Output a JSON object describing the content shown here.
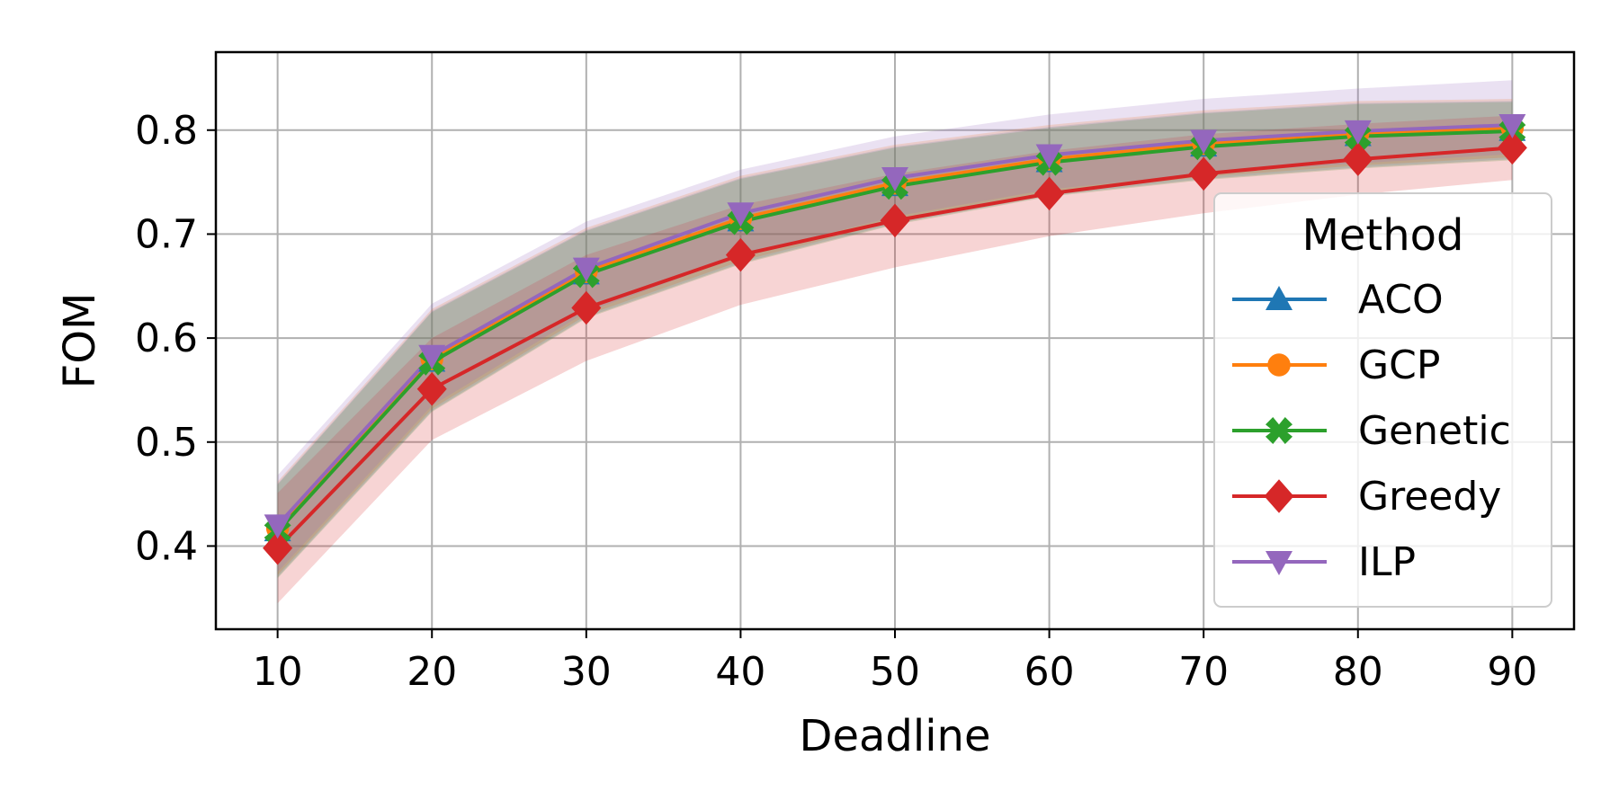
{
  "chart_data": {
    "type": "line",
    "xlabel": "Deadline",
    "ylabel": "FOM",
    "x": [
      10,
      20,
      30,
      40,
      50,
      60,
      70,
      80,
      90
    ],
    "xlim": [
      6,
      94
    ],
    "ylim": [
      0.32,
      0.875
    ],
    "xticks": [
      "10",
      "20",
      "30",
      "40",
      "50",
      "60",
      "70",
      "80",
      "90"
    ],
    "yticks": [
      "0.4",
      "0.5",
      "0.6",
      "0.7",
      "0.8"
    ],
    "ytick_values": [
      0.4,
      0.5,
      0.6,
      0.7,
      0.8
    ],
    "grid": true,
    "legend": {
      "title": "Method",
      "placement": "right"
    },
    "series": [
      {
        "name": "ACO",
        "marker": "triangle-up",
        "color": "#1f77b4",
        "values": [
          0.415,
          0.578,
          0.662,
          0.713,
          0.747,
          0.77,
          0.785,
          0.795,
          0.8
        ],
        "lower": [
          0.37,
          0.53,
          0.62,
          0.672,
          0.71,
          0.737,
          0.753,
          0.764,
          0.772
        ],
        "upper": [
          0.46,
          0.626,
          0.704,
          0.754,
          0.784,
          0.803,
          0.817,
          0.826,
          0.828
        ]
      },
      {
        "name": "GCP",
        "marker": "circle",
        "color": "#ff7f0e",
        "values": [
          0.417,
          0.58,
          0.664,
          0.715,
          0.749,
          0.772,
          0.787,
          0.797,
          0.802
        ],
        "lower": [
          0.372,
          0.532,
          0.622,
          0.674,
          0.712,
          0.739,
          0.755,
          0.766,
          0.774
        ],
        "upper": [
          0.462,
          0.628,
          0.706,
          0.756,
          0.786,
          0.805,
          0.819,
          0.828,
          0.83
        ]
      },
      {
        "name": "Genetic",
        "marker": "x-filled",
        "color": "#2ca02c",
        "values": [
          0.414,
          0.577,
          0.661,
          0.712,
          0.746,
          0.769,
          0.784,
          0.794,
          0.799
        ],
        "lower": [
          0.369,
          0.529,
          0.619,
          0.671,
          0.709,
          0.736,
          0.752,
          0.763,
          0.771
        ],
        "upper": [
          0.459,
          0.625,
          0.703,
          0.753,
          0.783,
          0.802,
          0.816,
          0.825,
          0.827
        ]
      },
      {
        "name": "Greedy",
        "marker": "diamond",
        "color": "#d62728",
        "values": [
          0.398,
          0.551,
          0.629,
          0.68,
          0.713,
          0.739,
          0.758,
          0.772,
          0.783
        ],
        "lower": [
          0.345,
          0.502,
          0.578,
          0.632,
          0.668,
          0.698,
          0.72,
          0.738,
          0.752
        ],
        "upper": [
          0.451,
          0.6,
          0.68,
          0.728,
          0.758,
          0.78,
          0.796,
          0.806,
          0.814
        ]
      },
      {
        "name": "ILP",
        "marker": "triangle-down",
        "color": "#9467bd",
        "values": [
          0.42,
          0.583,
          0.667,
          0.72,
          0.754,
          0.776,
          0.79,
          0.799,
          0.805
        ],
        "lower": [
          0.375,
          0.535,
          0.625,
          0.679,
          0.717,
          0.743,
          0.758,
          0.768,
          0.777
        ],
        "upper": [
          0.468,
          0.633,
          0.712,
          0.762,
          0.794,
          0.815,
          0.83,
          0.84,
          0.848
        ]
      }
    ]
  }
}
